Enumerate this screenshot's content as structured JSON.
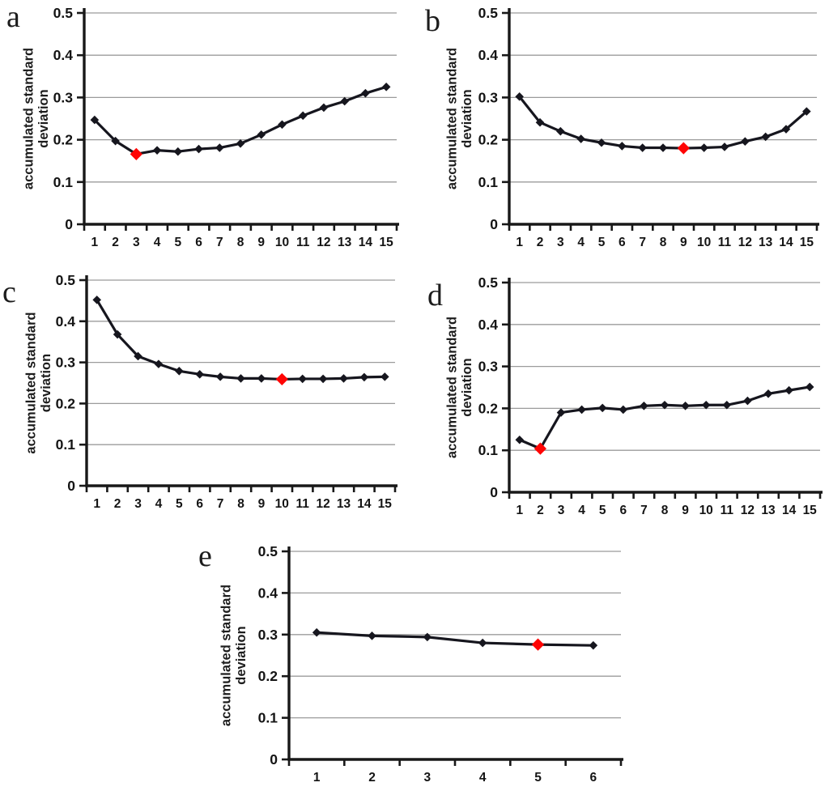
{
  "figure": {
    "background": "#ffffff",
    "grid_color": "#9b9b9b",
    "axis_color": "#181818",
    "text_color": "#141414"
  },
  "chart_data": [
    {
      "type": "line",
      "panel_letter": "a",
      "title": "",
      "xlabel": "",
      "ylabel": "accumulated standard deviation",
      "ylabel_lines": [
        "accumulated standard",
        "deviation"
      ],
      "x": [
        1,
        2,
        3,
        4,
        5,
        6,
        7,
        8,
        9,
        10,
        11,
        12,
        13,
        14,
        15
      ],
      "values": [
        0.247,
        0.197,
        0.166,
        0.175,
        0.172,
        0.178,
        0.181,
        0.191,
        0.212,
        0.236,
        0.257,
        0.276,
        0.291,
        0.31,
        0.325
      ],
      "highlight_index": 2,
      "highlight_x": 3,
      "highlight_value": 0.166,
      "highlight_color": "#ff0404",
      "line_color": "#16161e",
      "marker": "diamond",
      "ylim": [
        0,
        0.5
      ],
      "yticks": [
        "0",
        "0.1",
        "0.2",
        "0.3",
        "0.4",
        "0.5"
      ],
      "grid": true,
      "legend": "none"
    },
    {
      "type": "line",
      "panel_letter": "b",
      "title": "",
      "xlabel": "",
      "ylabel": "accumulated standard deviation",
      "ylabel_lines": [
        "accumulated standard",
        "deviation"
      ],
      "x": [
        1,
        2,
        3,
        4,
        5,
        6,
        7,
        8,
        9,
        10,
        11,
        12,
        13,
        14,
        15
      ],
      "values": [
        0.302,
        0.241,
        0.22,
        0.202,
        0.193,
        0.185,
        0.181,
        0.181,
        0.18,
        0.181,
        0.183,
        0.196,
        0.207,
        0.225,
        0.267
      ],
      "highlight_index": 8,
      "highlight_x": 9,
      "highlight_value": 0.18,
      "highlight_color": "#ff0404",
      "line_color": "#16161e",
      "marker": "diamond",
      "ylim": [
        0,
        0.5
      ],
      "yticks": [
        "0",
        "0.1",
        "0.2",
        "0.3",
        "0.4",
        "0.5"
      ],
      "grid": true,
      "legend": "none"
    },
    {
      "type": "line",
      "panel_letter": "c",
      "title": "",
      "xlabel": "",
      "ylabel": "accumulated standard deviation",
      "ylabel_lines": [
        "accumulated standard",
        "deviation"
      ],
      "x": [
        1,
        2,
        3,
        4,
        5,
        6,
        7,
        8,
        9,
        10,
        11,
        12,
        13,
        14,
        15
      ],
      "values": [
        0.452,
        0.368,
        0.315,
        0.296,
        0.279,
        0.271,
        0.265,
        0.261,
        0.261,
        0.259,
        0.26,
        0.26,
        0.261,
        0.264,
        0.265
      ],
      "highlight_index": 9,
      "highlight_x": 10,
      "highlight_value": 0.259,
      "highlight_color": "#ff0404",
      "line_color": "#16161e",
      "marker": "diamond",
      "ylim": [
        0,
        0.5
      ],
      "yticks": [
        "0",
        "0.1",
        "0.2",
        "0.3",
        "0.4",
        "0.5"
      ],
      "grid": true,
      "legend": "none"
    },
    {
      "type": "line",
      "panel_letter": "d",
      "title": "",
      "xlabel": "",
      "ylabel": "accumulated standard deviation",
      "ylabel_lines": [
        "accumulated standard",
        "deviation"
      ],
      "x": [
        1,
        2,
        3,
        4,
        5,
        6,
        7,
        8,
        9,
        10,
        11,
        12,
        13,
        14,
        15
      ],
      "values": [
        0.125,
        0.104,
        0.19,
        0.197,
        0.201,
        0.197,
        0.206,
        0.208,
        0.206,
        0.208,
        0.208,
        0.218,
        0.235,
        0.243,
        0.251
      ],
      "highlight_index": 1,
      "highlight_x": 2,
      "highlight_value": 0.104,
      "highlight_color": "#ff0404",
      "line_color": "#16161e",
      "marker": "diamond",
      "ylim": [
        0,
        0.5
      ],
      "yticks": [
        "0",
        "0.1",
        "0.2",
        "0.3",
        "0.4",
        "0.5"
      ],
      "grid": true,
      "legend": "none"
    },
    {
      "type": "line",
      "panel_letter": "e",
      "title": "",
      "xlabel": "",
      "ylabel": "accumulated standard deviation",
      "ylabel_lines": [
        "accumulated standard",
        "deviation"
      ],
      "x": [
        1,
        2,
        3,
        4,
        5,
        6
      ],
      "values": [
        0.305,
        0.297,
        0.294,
        0.28,
        0.276,
        0.274
      ],
      "highlight_index": 4,
      "highlight_x": 5,
      "highlight_value": 0.276,
      "highlight_color": "#ff0404",
      "line_color": "#16161e",
      "marker": "diamond",
      "ylim": [
        0,
        0.5
      ],
      "yticks": [
        "0",
        "0.1",
        "0.2",
        "0.3",
        "0.4",
        "0.5"
      ],
      "grid": true,
      "legend": "none"
    }
  ]
}
